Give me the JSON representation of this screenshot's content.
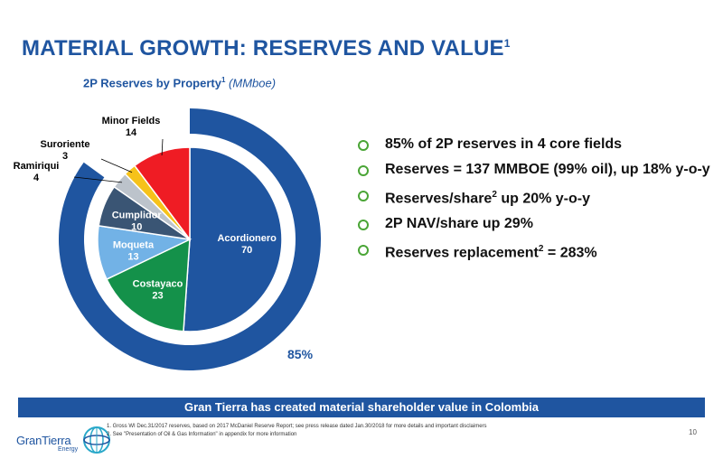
{
  "title": "MATERIAL GROWTH: RESERVES AND VALUE",
  "title_sup": "1",
  "chart_title": {
    "label": "2P Reserves by Property",
    "sup": "1",
    "unit": "(MMboe)"
  },
  "chart_data": {
    "type": "pie",
    "unit": "MMboe",
    "categories": [
      "Acordionero",
      "Costayaco",
      "Moqueta",
      "Cumplidor",
      "Ramiriqui",
      "Suroriente",
      "Minor Fields"
    ],
    "values": [
      70,
      23,
      13,
      10,
      4,
      3,
      14
    ],
    "value_labels": [
      "70",
      "23",
      "13",
      "10",
      "4",
      "3",
      "14"
    ],
    "colors": [
      "#1f55a0",
      "#14914a",
      "#72b2e6",
      "#3a5574",
      "#bcc3cb",
      "#f6c21a",
      "#ef1c24"
    ],
    "ring": {
      "label": "85%",
      "fraction": 0.85,
      "color": "#1f55a0"
    }
  },
  "bullets": [
    {
      "text": "85% of 2P reserves in 4 core fields"
    },
    {
      "text": "Reserves = 137 MMBOE (99% oil), up 18% y-o-y"
    },
    {
      "text": "Reserves/share",
      "sup": "2",
      "rest": " up 20% y-o-y"
    },
    {
      "text": "2P NAV/share up 29%"
    },
    {
      "text": "Reserves replacement",
      "sup": "2",
      "rest": " = 283%"
    }
  ],
  "banner": "Gran Tierra has created material shareholder value in Colombia",
  "footnotes": [
    "1.  Gross WI Dec.31/2017 reserves, based on 2017 McDaniel Reserve Report; see press release dated Jan.30/2018 for more details and important disclaimers",
    "2.  See \"Presentation of Oil & Gas Information\" in appendix for more information"
  ],
  "page_number": "10",
  "logo": {
    "name": "GranTierra",
    "sub": "Energy",
    "icon": "globe-logo-icon"
  }
}
